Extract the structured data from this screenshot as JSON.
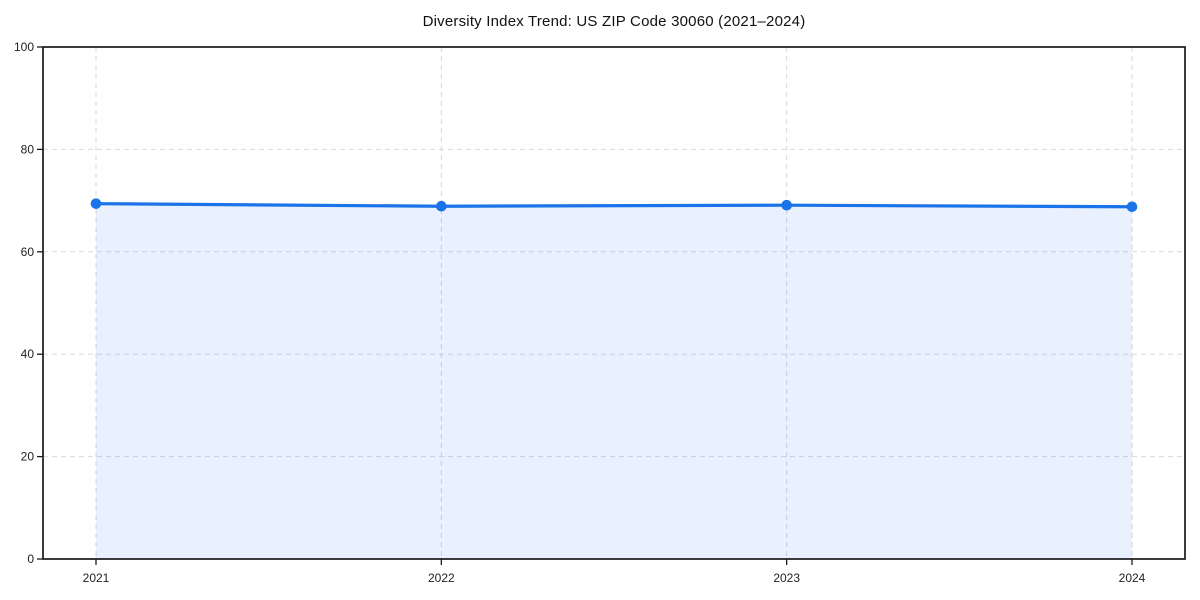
{
  "chart_data": {
    "type": "area",
    "title": "Diversity Index Trend: US ZIP Code 30060 (2021–2024)",
    "categories": [
      "2021",
      "2022",
      "2023",
      "2024"
    ],
    "values": [
      69.4,
      68.9,
      69.1,
      68.8
    ],
    "xlabel": "",
    "ylabel": "",
    "ylim": [
      0,
      100
    ],
    "yticks": [
      0,
      20,
      40,
      60,
      80,
      100
    ],
    "grid": "dashed",
    "legend": "none",
    "colors": {
      "line": "#1a73e8",
      "marker": "#1a73e8",
      "fill_rgba": "rgba(26,115,232,0.10)",
      "grid": "#d9d9d9",
      "spine": "#1a1a1a",
      "tick_label": "#222222",
      "title": "#111111",
      "background": "#ffffff"
    }
  }
}
